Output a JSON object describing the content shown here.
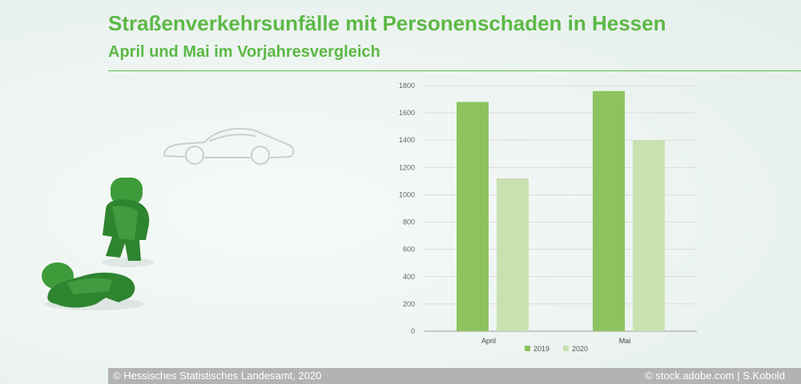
{
  "header": {
    "title": "Straßenverkehrsunfälle mit Personenschaden in Hessen",
    "subtitle": "April und Mai im Vorjahresvergleich"
  },
  "footer": {
    "left": "© Hessisches Statistisches Landesamt, 2020",
    "right": "© stock.adobe.com | S.Kobold"
  },
  "colors": {
    "accent": "#5cb946",
    "series_2019": "#8cc35f",
    "series_2020": "#c9e1b0",
    "figure_green": "#3f9a3c"
  },
  "chart_data": {
    "type": "bar",
    "categories": [
      "April",
      "Mai"
    ],
    "series": [
      {
        "name": "2019",
        "values": [
          1680,
          1760
        ]
      },
      {
        "name": "2020",
        "values": [
          1120,
          1400
        ]
      }
    ],
    "yticks": [
      0,
      200,
      400,
      600,
      800,
      1000,
      1200,
      1400,
      1600,
      1800
    ],
    "ylim": [
      0,
      1800
    ],
    "grid": true,
    "legend": "bottom-center"
  }
}
